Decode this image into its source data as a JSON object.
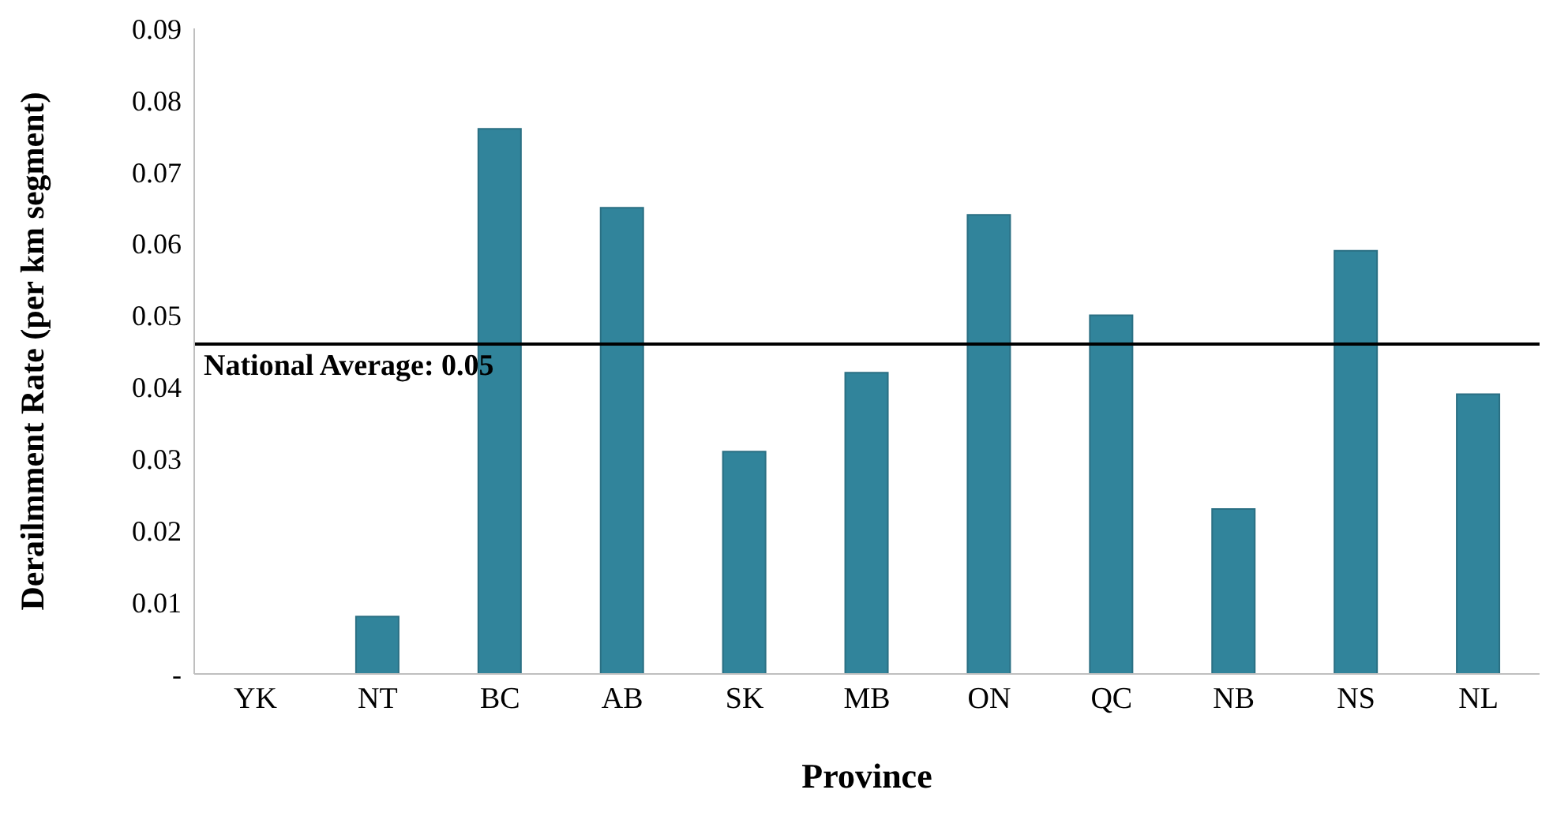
{
  "chart_data": {
    "type": "bar",
    "xlabel": "Province",
    "ylabel": "Derailmment Rate (per km segment)",
    "categories": [
      "YK",
      "NT",
      "BC",
      "AB",
      "SK",
      "MB",
      "ON",
      "QC",
      "NB",
      "NS",
      "NL"
    ],
    "values": [
      0,
      0.008,
      0.076,
      0.065,
      0.031,
      0.042,
      0.064,
      0.05,
      0.023,
      0.059,
      0.039
    ],
    "color": "#31849b",
    "ylim": [
      0,
      0.09
    ],
    "yticks": [
      {
        "value": 0,
        "label": "-"
      },
      0.01,
      0.02,
      0.03,
      0.04,
      0.05,
      0.06,
      0.07,
      0.08,
      0.09
    ],
    "ref_lines": [
      {
        "axis": "y",
        "value": 0.046,
        "label": "National Average: 0.05",
        "color": "#000000"
      }
    ],
    "grid": false,
    "legend": false
  }
}
